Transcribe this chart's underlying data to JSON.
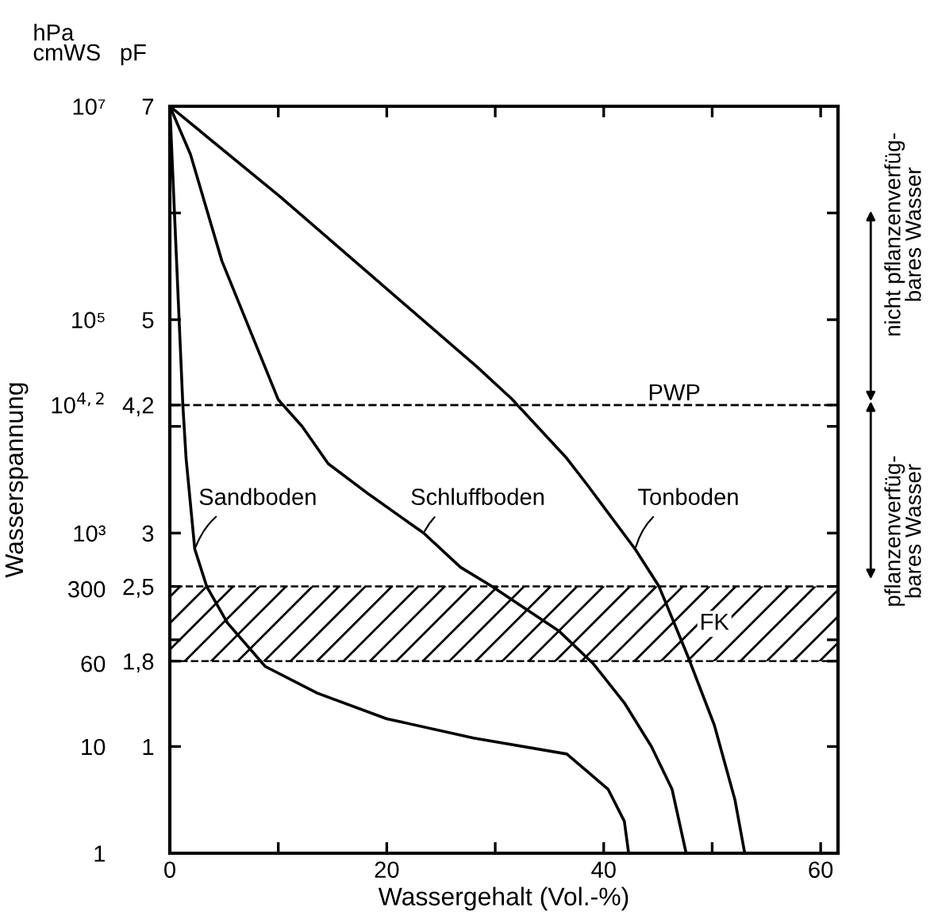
{
  "chart_data": {
    "type": "line",
    "xlabel": "Wassergehalt (Vol.-%)",
    "ylabel": "Wasserspannung",
    "y2label": "pF",
    "xlim": [
      0,
      61.6
    ],
    "xticks": [
      0,
      {
        "value": 10,
        "label": null
      },
      20,
      {
        "value": 30,
        "label": null
      },
      40,
      {
        "value": 50,
        "label": null
      },
      60
    ],
    "log": "y",
    "ylim": [
      1,
      10000000
    ],
    "yticks": [
      1,
      10,
      60,
      300,
      {
        "value": 1000,
        "label": "10³"
      },
      {
        "value": 15849,
        "label": "10$^{4,2}$"
      },
      {
        "value": 100000,
        "label": "10⁵"
      },
      {
        "value": 10000000,
        "label": "10⁷"
      }
    ],
    "y2lim": [
      0,
      7
    ],
    "y2ticks": [
      {
        "value": 1,
        "label": "1"
      },
      {
        "value": 1.8,
        "label": "1,8"
      },
      {
        "value": 2,
        "label": null
      },
      {
        "value": 2.5,
        "label": "2,5"
      },
      {
        "value": 3,
        "label": "3"
      },
      {
        "value": 4,
        "label": null
      },
      {
        "value": 4.2,
        "label": "4,2"
      },
      {
        "value": 5,
        "label": "5"
      },
      {
        "value": 6,
        "label": null
      },
      {
        "value": 7,
        "label": "7"
      }
    ],
    "grid": false,
    "legend": false,
    "marker": "none",
    "line_style": "solid",
    "series": [
      {
        "name": "Sandboden",
        "color": "#000000",
        "axis": "y2",
        "x": [
          0,
          1.2,
          1.5,
          2.3,
          3.4,
          5.3,
          8.8,
          13.6,
          20,
          28,
          36.6,
          40.4,
          41.9,
          42.3
        ],
        "values": [
          7,
          4.2,
          3.7,
          2.85,
          2.5,
          2.16,
          1.75,
          1.5,
          1.26,
          1.08,
          0.93,
          0.6,
          0.3,
          0
        ]
      },
      {
        "name": "Schluffboden",
        "color": "#000000",
        "axis": "y2",
        "x": [
          0,
          1.9,
          4.8,
          7.8,
          10,
          12.2,
          14.6,
          18.4,
          23.4,
          26.8,
          29.7,
          35.9,
          39,
          41.9,
          44.4,
          46.3,
          47.6
        ],
        "values": [
          7,
          6.55,
          5.55,
          4.8,
          4.25,
          4.0,
          3.65,
          3.36,
          3.0,
          2.68,
          2.5,
          2.08,
          1.78,
          1.41,
          1.0,
          0.6,
          0
        ]
      },
      {
        "name": "Tonboden",
        "color": "#000000",
        "axis": "y2",
        "x": [
          0,
          10.2,
          28.3,
          31.5,
          36.6,
          38.5,
          42.9,
          45.1,
          47.7,
          50.2,
          52.1,
          53
        ],
        "values": [
          7,
          6.15,
          4.56,
          4.26,
          3.7,
          3.45,
          2.85,
          2.5,
          1.86,
          1.2,
          0.5,
          0
        ]
      }
    ],
    "ref_lines": [
      {
        "axis": "y2",
        "value": 4.2,
        "label": "PWP",
        "color": "#000000",
        "line_style": "dashed"
      }
    ],
    "bands": [
      {
        "axis": "y2",
        "from": 1.8,
        "to": 2.5,
        "label": "FK",
        "color": "#000000"
      }
    ],
    "annotations": [
      "hPa\ncmWS",
      "nicht pflanzenverfüg-\nbares Wasser",
      "pflanzenverfüg-\nbares Wasser"
    ]
  }
}
